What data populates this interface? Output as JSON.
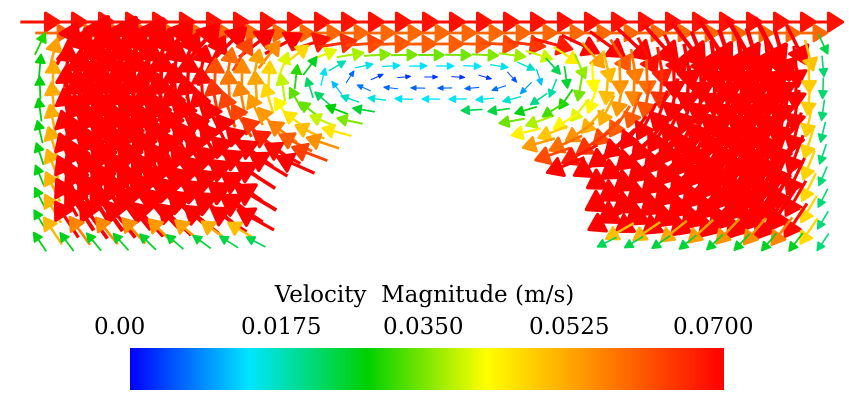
{
  "legend": {
    "title": "Velocity  Magnitude (m/s)",
    "ticks": [
      "0.00",
      "0.0175",
      "0.0350",
      "0.0525",
      "0.0700"
    ],
    "range": [
      0.0,
      0.07
    ]
  },
  "colormap": {
    "name": "rainbow",
    "stops": [
      "#0000ff",
      "#00e5ff",
      "#00d000",
      "#ffff00",
      "#ff8000",
      "#ff0000"
    ]
  },
  "field": {
    "description_free": true,
    "lid_speed": 0.07
  }
}
